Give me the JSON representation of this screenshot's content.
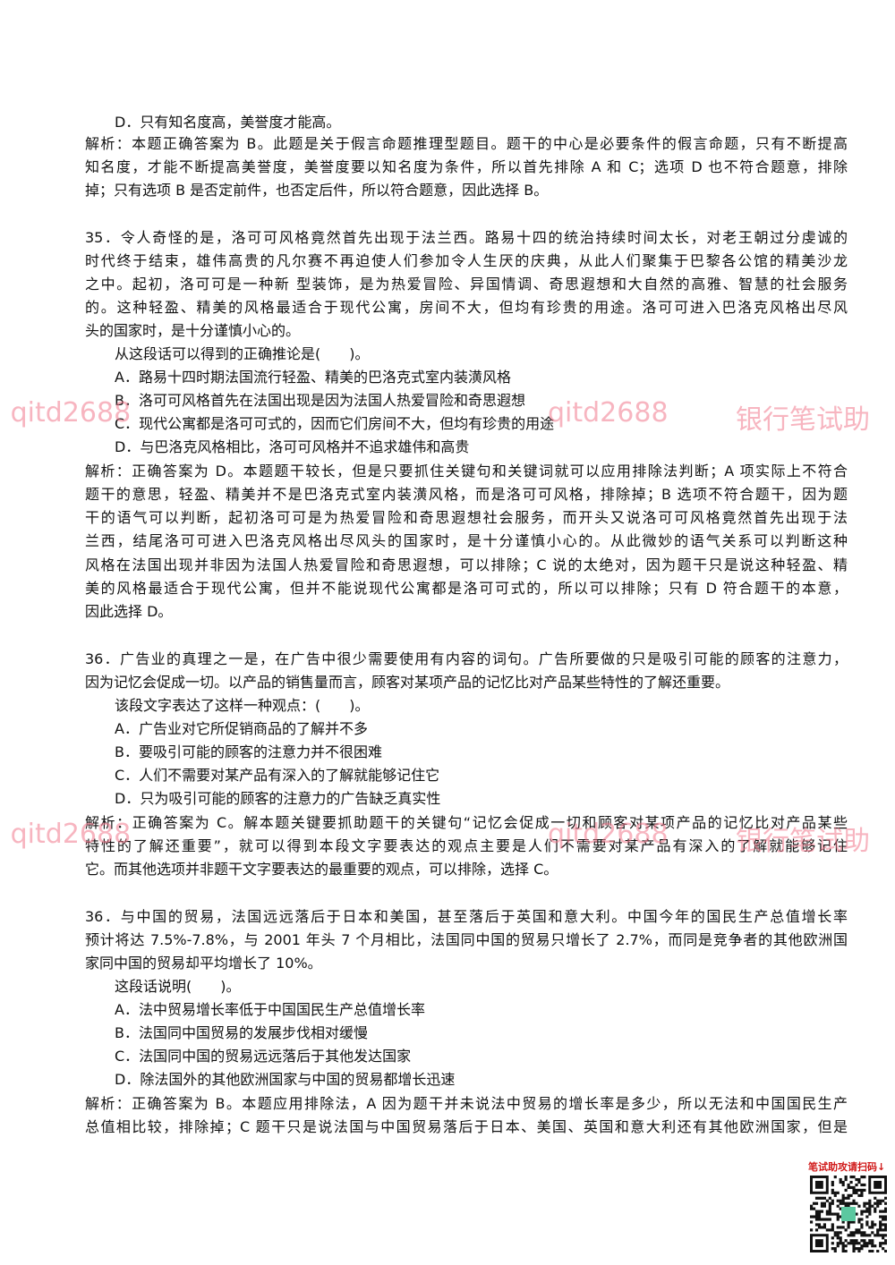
{
  "lines": [
    "D．只有知名度高，美誉度才能高。",
    "解析：本题正确答案为 B。此题是关于假言命题推理型题目。题干的中心是必要条件的假言命题，只有不断提高",
    "知名度，才能不断提高美誉度，美誉度要以知名度为条件，所以首先排除 A 和 C；选项 D 也不符合题意，排除",
    "掉；只有选项 B 是否定前件，也否定后件，所以符合题意，因此选择 B。",
    "35．令人奇怪的是，洛可可风格竟然首先出现于法兰西。路易十四的统治持续时间太长，对老王朝过分虔诚的",
    "时代终于结束，雄伟高贵的凡尔赛不再迫使人们参加令人生厌的庆典，从此人们聚集于巴黎各公馆的精美沙龙",
    "之中。起初，洛可可是一种新 型装饰，是为热爱冒险、异国情调、奇思遐想和大自然的高雅、智慧的社会服务",
    "的。这种轻盈、精美的风格最适合于现代公寓，房间不大，但均有珍贵的用途。洛可可进入巴洛克风格出尽风",
    "头的国家时，是十分谨慎小心的。",
    "从这段话可以得到的正确推论是(　　)。",
    "A．路易十四时期法国流行轻盈、精美的巴洛克式室内装潢风格",
    "B．洛可可风格首先在法国出现是因为法国人热爱冒险和奇思遐想",
    "C．现代公寓都是洛可可式的，因而它们房间不大，但均有珍贵的用途",
    "D．与巴洛克风格相比，洛可可风格并不追求雄伟和高贵",
    "解析：正确答案为 D。本题题干较长，但是只要抓住关键句和关键词就可以应用排除法判断；A 项实际上不符合",
    "题干的意思，轻盈、精美并不是巴洛克式室内装潢风格，而是洛可可风格，排除掉；B 选项不符合题干，因为题",
    "干的语气可以判断，起初洛可可是为热爱冒险和奇思遐想社会服务，而开头又说洛可可风格竟然首先出现于法",
    "兰西，结尾洛可可进入巴洛克风格出尽风头的国家时，是十分谨慎小心的。从此微妙的语气关系可以判断这种",
    "风格在法国出现并非因为法国人热爱冒险和奇思遐想，可以排除；C 说的太绝对，因为题干只是说这种轻盈、精",
    "美的风格最适合于现代公寓，但并不能说现代公寓都是洛可可式的，所以可以排除；只有 D 符合题干的本意，",
    "因此选择 D。",
    "36．广告业的真理之一是，在广告中很少需要使用有内容的词句。广告所要做的只是吸引可能的顾客的注意力，",
    "因为记忆会促成一切。以产品的销售量而言，顾客对某项产品的记忆比对产品某些特性的了解还重要。",
    "该段文字表达了这样一种观点：(　　)。",
    "A．广告业对它所促销商品的了解并不多",
    "B．要吸引可能的顾客的注意力并不很困难",
    "C．人们不需要对某产品有深入的了解就能够记住它",
    "D．只为吸引可能的顾客的注意力的广告缺乏真实性",
    "解析：正确答案为 C。解本题关键要抓助题干的关键句“记忆会促成一切和顾客对某项产品的记忆比对产品某些",
    "特性的了解还重要”，就可以得到本段文字要表达的观点主要是人们不需要对某产品有深入的了解就能够记住",
    "它。而其他选项并非题干文字要表达的最重要的观点，可以排除，选择 C。",
    "36．与中国的贸易，法国远远落后于日本和美国，甚至落后于英国和意大利。中国今年的国民生产总值增长率",
    "预计将达 7.5%-7.8%，与 2001 年头 7 个月相比，法国同中国的贸易只增长了 2.7%，而同是竞争者的其他欧洲国",
    "家同中国的贸易却平均增长了 10%。",
    "这段话说明(　　)。",
    "A．法中贸易增长率低于中国国民生产总值增长率",
    "B．法国同中国贸易的发展步伐相对缓慢",
    "C．法国同中国的贸易远远落后于其他发达国家",
    "D．除法国外的其他欧洲国家与中国的贸易都增长迅速",
    "解析：正确答案为 B。本题应用排除法，A 因为题干并未说法中贸易的增长率是多少，所以无法和中国国民生产",
    "总值相比较，排除掉；C 题干只是说法国与中国贸易落后于日本、美国、英国和意大利还有其他欧洲国家，但是"
  ],
  "watermarks": [
    ": qitd2688",
    "qitd2688",
    "银行笔试助"
  ],
  "qr_caption": "笔试助攻请扫码↓"
}
